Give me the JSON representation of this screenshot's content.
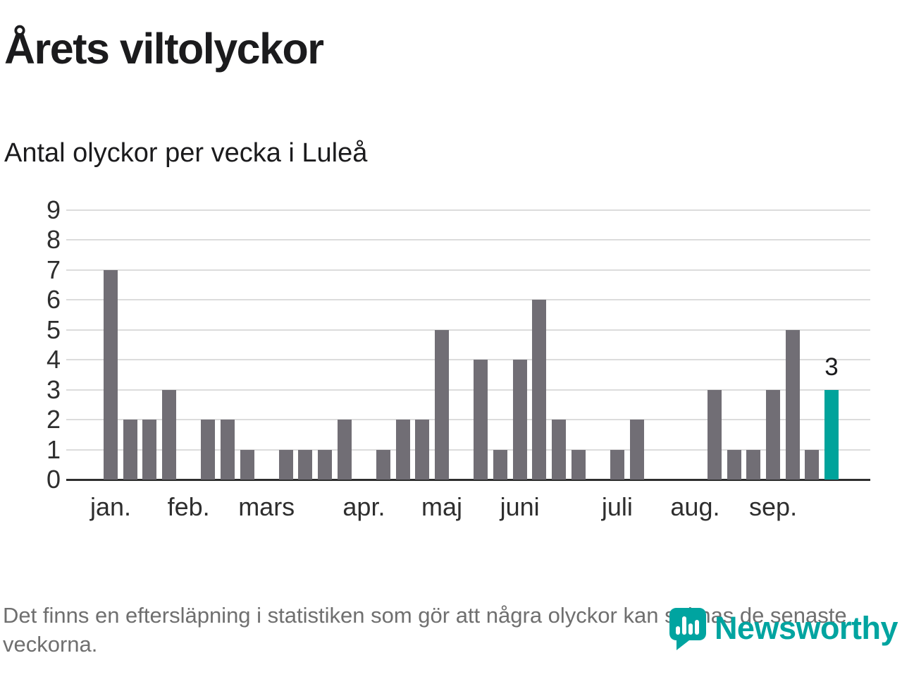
{
  "title": "Årets viltolyckor",
  "subtitle": "Antal olyckor per vecka i Luleå",
  "footer_note": "Det finns en eftersläpning i statistiken som gör att några olyckor kan saknas de senaste veckorna.",
  "logo": {
    "text": "Newsworthy",
    "color": "#00a4a0"
  },
  "colors": {
    "bar": "#716e75",
    "highlight": "#00a39b",
    "grid": "#dcdcdc",
    "axis": "#2e2e2e",
    "text": "#1b1b1d",
    "muted": "#6f6f6f"
  },
  "chart_data": {
    "type": "bar",
    "title": "Årets viltolyckor",
    "subtitle": "Antal olyckor per vecka i Luleå",
    "xlabel": "",
    "ylabel": "",
    "ylim": [
      0,
      9
    ],
    "yticks": [
      0,
      1,
      2,
      3,
      4,
      5,
      6,
      7,
      8,
      9
    ],
    "grid": true,
    "legend_position": "none",
    "values": [
      7,
      2,
      2,
      3,
      0,
      2,
      2,
      1,
      0,
      1,
      1,
      1,
      2,
      0,
      1,
      2,
      2,
      5,
      0,
      4,
      1,
      4,
      6,
      2,
      1,
      0,
      1,
      2,
      0,
      0,
      0,
      3,
      1,
      1,
      3,
      5,
      1,
      3
    ],
    "highlight_index": 37,
    "annotation": {
      "index": 37,
      "label": "3"
    },
    "month_ticks": [
      {
        "label": "jan.",
        "index": 0
      },
      {
        "label": "feb.",
        "index": 4
      },
      {
        "label": "mars",
        "index": 8
      },
      {
        "label": "apr.",
        "index": 13
      },
      {
        "label": "maj",
        "index": 17
      },
      {
        "label": "juni",
        "index": 21
      },
      {
        "label": "juli",
        "index": 26
      },
      {
        "label": "aug.",
        "index": 30
      },
      {
        "label": "sep.",
        "index": 34
      }
    ]
  }
}
